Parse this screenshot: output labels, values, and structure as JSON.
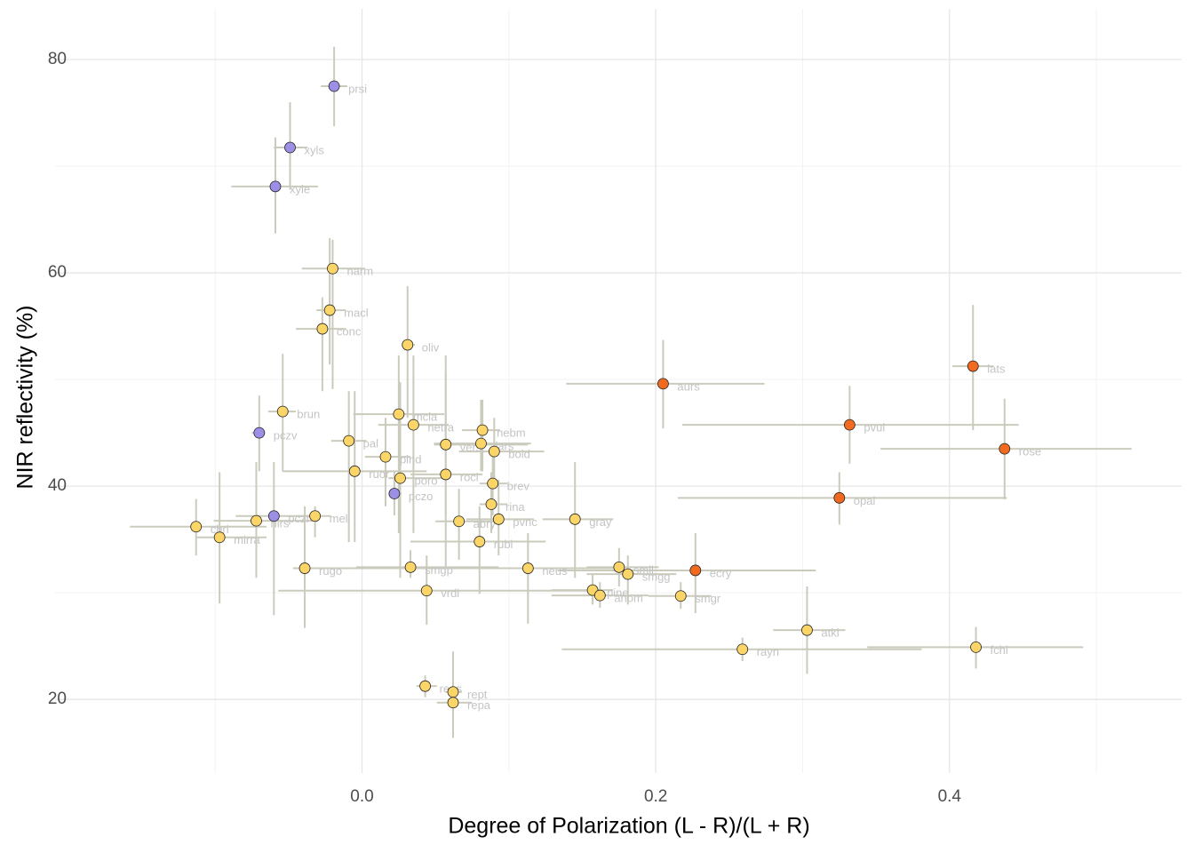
{
  "chart_data": {
    "type": "scatter",
    "xlabel": "Degree of Polarization (L - R)/(L + R)",
    "ylabel": "NIR reflectivity (%)",
    "xlim": [
      -0.209,
      0.558
    ],
    "ylim": [
      13.1,
      84.75
    ],
    "xticks": [
      {
        "value": 0,
        "label": "0.0"
      },
      {
        "value": 0.2,
        "label": "0.2"
      },
      {
        "value": 0.4,
        "label": "0.4"
      }
    ],
    "yticks": [
      20,
      40,
      60,
      80
    ],
    "xminor": [
      -0.1,
      0.1,
      0.3,
      0.5
    ],
    "yminor": [
      30,
      50,
      70
    ],
    "grid": true,
    "errorbar_color": "#cbcbbd",
    "series": [
      {
        "color": "#fbd567",
        "labels": [
          "narm",
          "macl",
          "conc",
          "oliv",
          "brun",
          "mcla",
          "netra",
          "nebm",
          "pal",
          "vers",
          "lars",
          "boid",
          "pind",
          "ruor",
          "roci",
          "poro",
          "brev",
          "rina",
          "meli",
          "pvnc",
          "abry",
          "gray",
          "nirs",
          "chri",
          "mirra",
          "rubi",
          "rugo",
          "smgp",
          "neus",
          "smll",
          "smgg",
          "vrdi",
          "pine",
          "anom",
          "smgr",
          "atki",
          "rayn",
          "fchi",
          "reus",
          "rept",
          "repa"
        ],
        "x": [
          -0.02,
          -0.022,
          -0.027,
          0.031,
          -0.054,
          0.025,
          0.035,
          0.082,
          -0.009,
          0.057,
          0.081,
          0.09,
          0.016,
          -0.005,
          0.057,
          0.026,
          0.089,
          0.088,
          -0.032,
          0.093,
          0.066,
          0.145,
          -0.072,
          -0.113,
          -0.097,
          0.08,
          -0.039,
          0.033,
          0.113,
          0.175,
          0.181,
          0.044,
          0.157,
          0.162,
          0.217,
          0.303,
          0.259,
          0.418,
          0.043,
          0.062,
          0.062
        ],
        "values": [
          60.4,
          56.5,
          54.75,
          53.25,
          47,
          46.75,
          45.75,
          45.25,
          44.25,
          43.9,
          44,
          43.25,
          42.75,
          41.4,
          41.1,
          40.75,
          40.25,
          38.3,
          37.2,
          36.9,
          36.7,
          36.9,
          36.75,
          36.2,
          35.2,
          34.8,
          32.3,
          32.4,
          32.3,
          32.4,
          31.75,
          30.2,
          30.25,
          29.75,
          29.7,
          26.5,
          24.7,
          24.9,
          21.25,
          20.7,
          19.7
        ],
        "xmin": [
          -0.041,
          -0.031,
          -0.045,
          0.027,
          -0.064,
          -0.006,
          0.011,
          0.068,
          -0.021,
          0.049,
          0.049,
          0.066,
          0.002,
          -0.054,
          0.033,
          0.018,
          0.08,
          0.08,
          -0.044,
          0.071,
          0.05,
          0.123,
          -0.101,
          -0.158,
          -0.113,
          0.033,
          -0.047,
          -0.004,
          0.008,
          0.153,
          0.153,
          -0.057,
          0.129,
          0.129,
          0.195,
          0.28,
          0.136,
          0.344,
          0.037,
          0.057,
          0.051
        ],
        "xmax": [
          0.002,
          -0.011,
          -0.011,
          0.036,
          -0.045,
          0.056,
          0.059,
          0.094,
          0.003,
          0.113,
          0.115,
          0.124,
          0.033,
          0.044,
          0.082,
          0.056,
          0.099,
          0.099,
          -0.021,
          0.117,
          0.093,
          0.171,
          -0.03,
          -0.065,
          -0.065,
          0.125,
          0.038,
          0.093,
          0.171,
          0.202,
          0.214,
          0.153,
          0.171,
          0.195,
          0.238,
          0.329,
          0.381,
          0.491,
          0.051,
          0.068,
          0.075
        ],
        "ymin": [
          49.1,
          51.4,
          48.9,
          46.4,
          41.4,
          35.6,
          35.6,
          41.4,
          34.75,
          37.25,
          41.4,
          40.6,
          38.1,
          34.75,
          32.25,
          31.4,
          37.25,
          35.6,
          35.2,
          33.5,
          33.1,
          31.4,
          31.4,
          33.5,
          29,
          29.9,
          26.7,
          31.4,
          27.1,
          30.6,
          28.9,
          27,
          28.9,
          28.6,
          28.5,
          22.4,
          23.6,
          22.9,
          20.2,
          16.4,
          16.4
        ],
        "ymax": [
          63.1,
          63.25,
          57.7,
          58.75,
          52.4,
          52.25,
          52.25,
          48.1,
          48.9,
          52.25,
          48.1,
          46.4,
          46.4,
          48.9,
          50.6,
          49.75,
          43.1,
          41.3,
          38.1,
          40.6,
          39.75,
          42.25,
          42.25,
          38.8,
          41.3,
          38.1,
          38.1,
          34,
          35.6,
          34.2,
          33.5,
          33.5,
          31.75,
          31,
          31,
          30.6,
          25.8,
          26.8,
          22.25,
          24.5,
          23
        ]
      },
      {
        "color": "#9c8fe6",
        "labels": [
          "prsi",
          "xyls",
          "xyle",
          "pczv",
          "pczo",
          "pczr"
        ],
        "x": [
          -0.019,
          -0.049,
          -0.059,
          -0.07,
          0.022,
          -0.06
        ],
        "values": [
          77.5,
          71.75,
          68.1,
          45,
          39.3,
          37.2
        ],
        "xmin": [
          -0.028,
          -0.06,
          -0.089,
          -0.075,
          0.018,
          -0.086
        ],
        "xmax": [
          -0.01,
          -0.037,
          -0.03,
          -0.066,
          0.027,
          -0.03
        ],
        "ymin": [
          73.75,
          67.8,
          63.7,
          41.4,
          37.25,
          27.9
        ],
        "ymax": [
          81.2,
          76,
          72.7,
          48.5,
          41.4,
          42.25
        ]
      },
      {
        "color": "#f26a1f",
        "labels": [
          "lats",
          "aurs",
          "pvul",
          "rose",
          "opal",
          "ecry"
        ],
        "x": [
          0.416,
          0.205,
          0.332,
          0.4375,
          0.325,
          0.227
        ],
        "values": [
          51.25,
          49.6,
          45.75,
          43.5,
          38.9,
          32.1
        ],
        "xmin": [
          0.402,
          0.139,
          0.218,
          0.353,
          0.215,
          0.133
        ],
        "xmax": [
          0.43,
          0.274,
          0.447,
          0.524,
          0.439,
          0.309
        ],
        "ymin": [
          45.25,
          45.4,
          42.1,
          38.75,
          36.4,
          28.1
        ],
        "ymax": [
          57,
          53.7,
          49.4,
          48.2,
          41.3,
          35.6
        ]
      }
    ]
  }
}
